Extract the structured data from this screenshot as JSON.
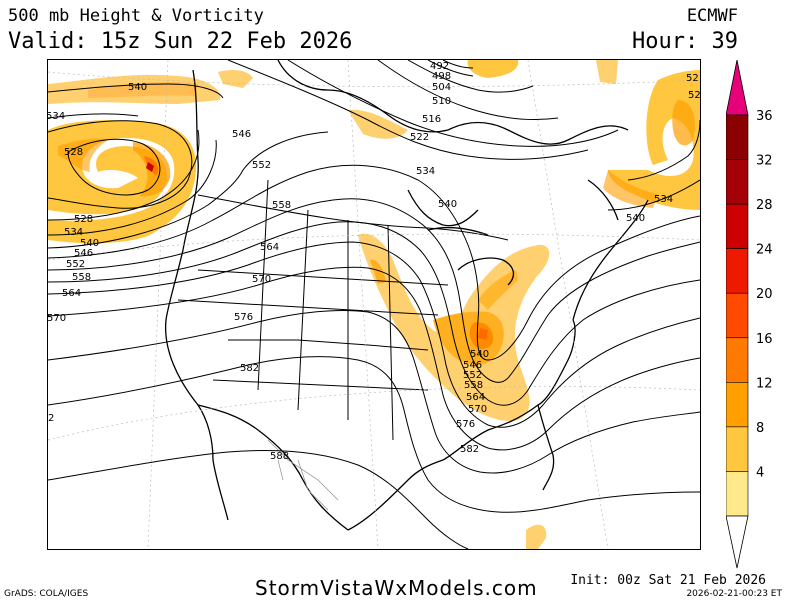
{
  "header": {
    "title": "500 mb Height & Vorticity",
    "valid": "Valid: 15z Sun 22 Feb 2026",
    "model": "ECMWF",
    "hour": "Hour: 39"
  },
  "colorbar": {
    "levels": [
      {
        "value": "36",
        "color": "#8b0000"
      },
      {
        "value": "32",
        "color": "#a40008"
      },
      {
        "value": "28",
        "color": "#cc0000"
      },
      {
        "value": "24",
        "color": "#ee1a00"
      },
      {
        "value": "20",
        "color": "#ff4a00"
      },
      {
        "value": "16",
        "color": "#ff7a00"
      },
      {
        "value": "12",
        "color": "#ff9f00"
      },
      {
        "value": "8",
        "color": "#ffc640"
      },
      {
        "value": "4",
        "color": "#ffe98a"
      }
    ],
    "top_triangle_color": "#e8007a"
  },
  "contour_labels": [
    {
      "text": "540"
    },
    {
      "text": "534"
    },
    {
      "text": "528"
    },
    {
      "text": "528"
    },
    {
      "text": "534"
    },
    {
      "text": "540"
    },
    {
      "text": "546"
    },
    {
      "text": "552"
    },
    {
      "text": "558"
    },
    {
      "text": "564"
    },
    {
      "text": "570"
    },
    {
      "text": "546"
    },
    {
      "text": "552"
    },
    {
      "text": "558"
    },
    {
      "text": "564"
    },
    {
      "text": "570"
    },
    {
      "text": "576"
    },
    {
      "text": "582"
    },
    {
      "text": "588"
    },
    {
      "text": "492"
    },
    {
      "text": "498"
    },
    {
      "text": "504"
    },
    {
      "text": "510"
    },
    {
      "text": "516"
    },
    {
      "text": "522"
    },
    {
      "text": "534"
    },
    {
      "text": "540"
    },
    {
      "text": "540"
    },
    {
      "text": "546"
    },
    {
      "text": "552"
    },
    {
      "text": "558"
    },
    {
      "text": "564"
    },
    {
      "text": "570"
    },
    {
      "text": "576"
    },
    {
      "text": "582"
    },
    {
      "text": "534"
    },
    {
      "text": "540"
    },
    {
      "text": "52"
    },
    {
      "text": "52"
    },
    {
      "text": "2"
    }
  ],
  "footer": {
    "site": "StormVistaWxModels.com",
    "grads": "GrADS: COLA/IGES",
    "init": "Init: 00z Sat 21 Feb 2026",
    "stamp": "2026-02-21-00:23 ET"
  }
}
